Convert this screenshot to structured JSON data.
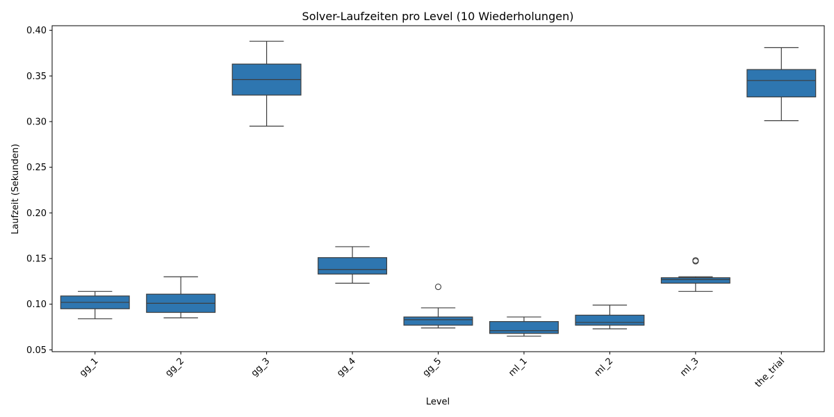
{
  "chart_data": {
    "type": "box",
    "title": "Solver-Laufzeiten pro Level (10 Wiederholungen)",
    "xlabel": "Level",
    "ylabel": "Laufzeit (Sekunden)",
    "ylim": [
      0.048,
      0.405
    ],
    "yticks": [
      0.05,
      0.1,
      0.15,
      0.2,
      0.25,
      0.3,
      0.35,
      0.4
    ],
    "yticklabels": [
      "0.05",
      "0.10",
      "0.15",
      "0.20",
      "0.25",
      "0.30",
      "0.35",
      "0.40"
    ],
    "grid": false,
    "box_color": "#2e76b0",
    "line_color": "#3d3d3d",
    "categories": [
      "gg_1",
      "gg_2",
      "gg_3",
      "gg_4",
      "gg_5",
      "ml_1",
      "ml_2",
      "ml_3",
      "the_trial"
    ],
    "boxes": [
      {
        "category": "gg_1",
        "whisker_low": 0.084,
        "q1": 0.095,
        "median": 0.102,
        "q3": 0.109,
        "whisker_high": 0.114,
        "outliers": []
      },
      {
        "category": "gg_2",
        "whisker_low": 0.085,
        "q1": 0.091,
        "median": 0.101,
        "q3": 0.111,
        "whisker_high": 0.13,
        "outliers": []
      },
      {
        "category": "gg_3",
        "whisker_low": 0.295,
        "q1": 0.329,
        "median": 0.346,
        "q3": 0.363,
        "whisker_high": 0.388,
        "outliers": []
      },
      {
        "category": "gg_4",
        "whisker_low": 0.123,
        "q1": 0.133,
        "median": 0.138,
        "q3": 0.151,
        "whisker_high": 0.163,
        "outliers": []
      },
      {
        "category": "gg_5",
        "whisker_low": 0.074,
        "q1": 0.077,
        "median": 0.083,
        "q3": 0.086,
        "whisker_high": 0.096,
        "outliers": [
          0.119
        ]
      },
      {
        "category": "ml_1",
        "whisker_low": 0.065,
        "q1": 0.068,
        "median": 0.071,
        "q3": 0.081,
        "whisker_high": 0.086,
        "outliers": []
      },
      {
        "category": "ml_2",
        "whisker_low": 0.073,
        "q1": 0.077,
        "median": 0.08,
        "q3": 0.088,
        "whisker_high": 0.099,
        "outliers": []
      },
      {
        "category": "ml_3",
        "whisker_low": 0.114,
        "q1": 0.123,
        "median": 0.127,
        "q3": 0.129,
        "whisker_high": 0.13,
        "outliers": [
          0.147,
          0.148
        ]
      },
      {
        "category": "the_trial",
        "whisker_low": 0.301,
        "q1": 0.327,
        "median": 0.345,
        "q3": 0.357,
        "whisker_high": 0.381,
        "outliers": []
      }
    ]
  }
}
